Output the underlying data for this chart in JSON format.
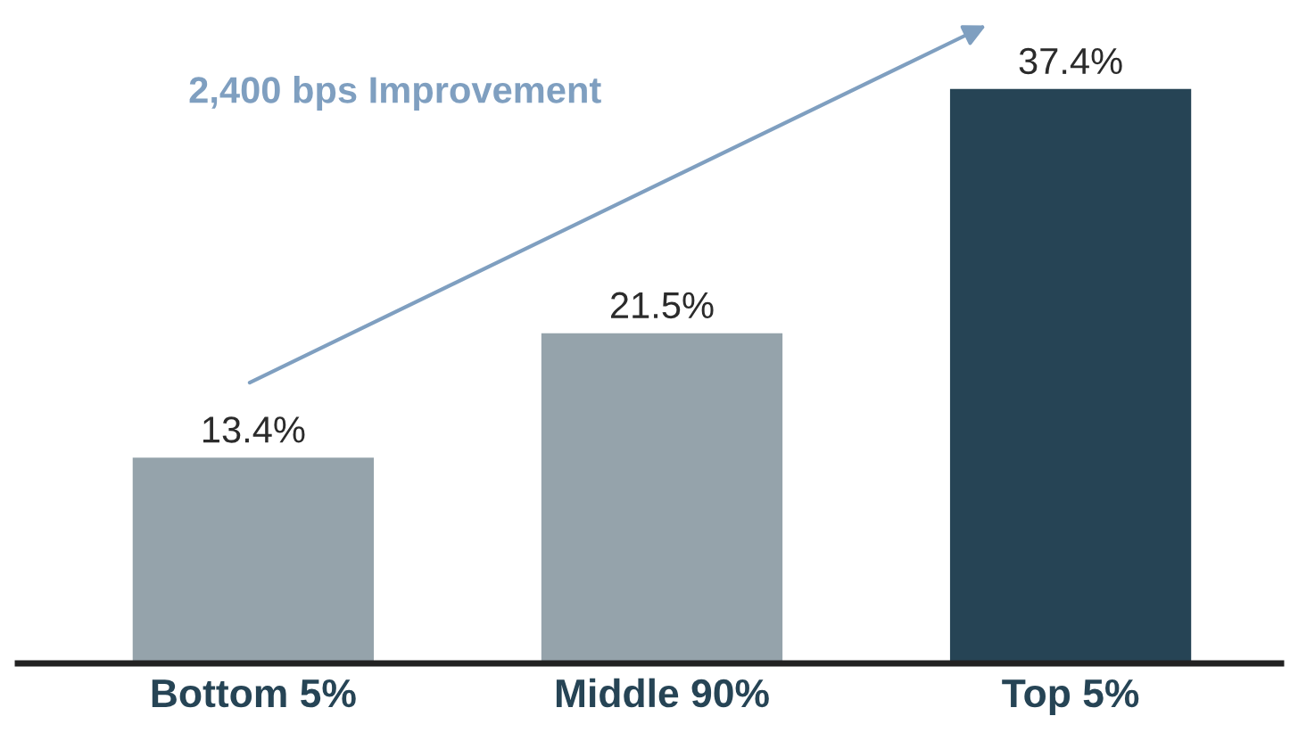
{
  "chart_data": {
    "type": "bar",
    "categories": [
      "Bottom 5%",
      "Middle 90%",
      "Top 5%"
    ],
    "values": [
      13.4,
      21.5,
      37.4
    ],
    "colors": [
      "#95a3ab",
      "#95a3ab",
      "#264455"
    ],
    "value_labels": [
      "13.4%",
      "21.5%",
      "37.4%"
    ],
    "annotations": [
      "2,400 bps Improvement"
    ],
    "grid": false,
    "legend": false
  }
}
